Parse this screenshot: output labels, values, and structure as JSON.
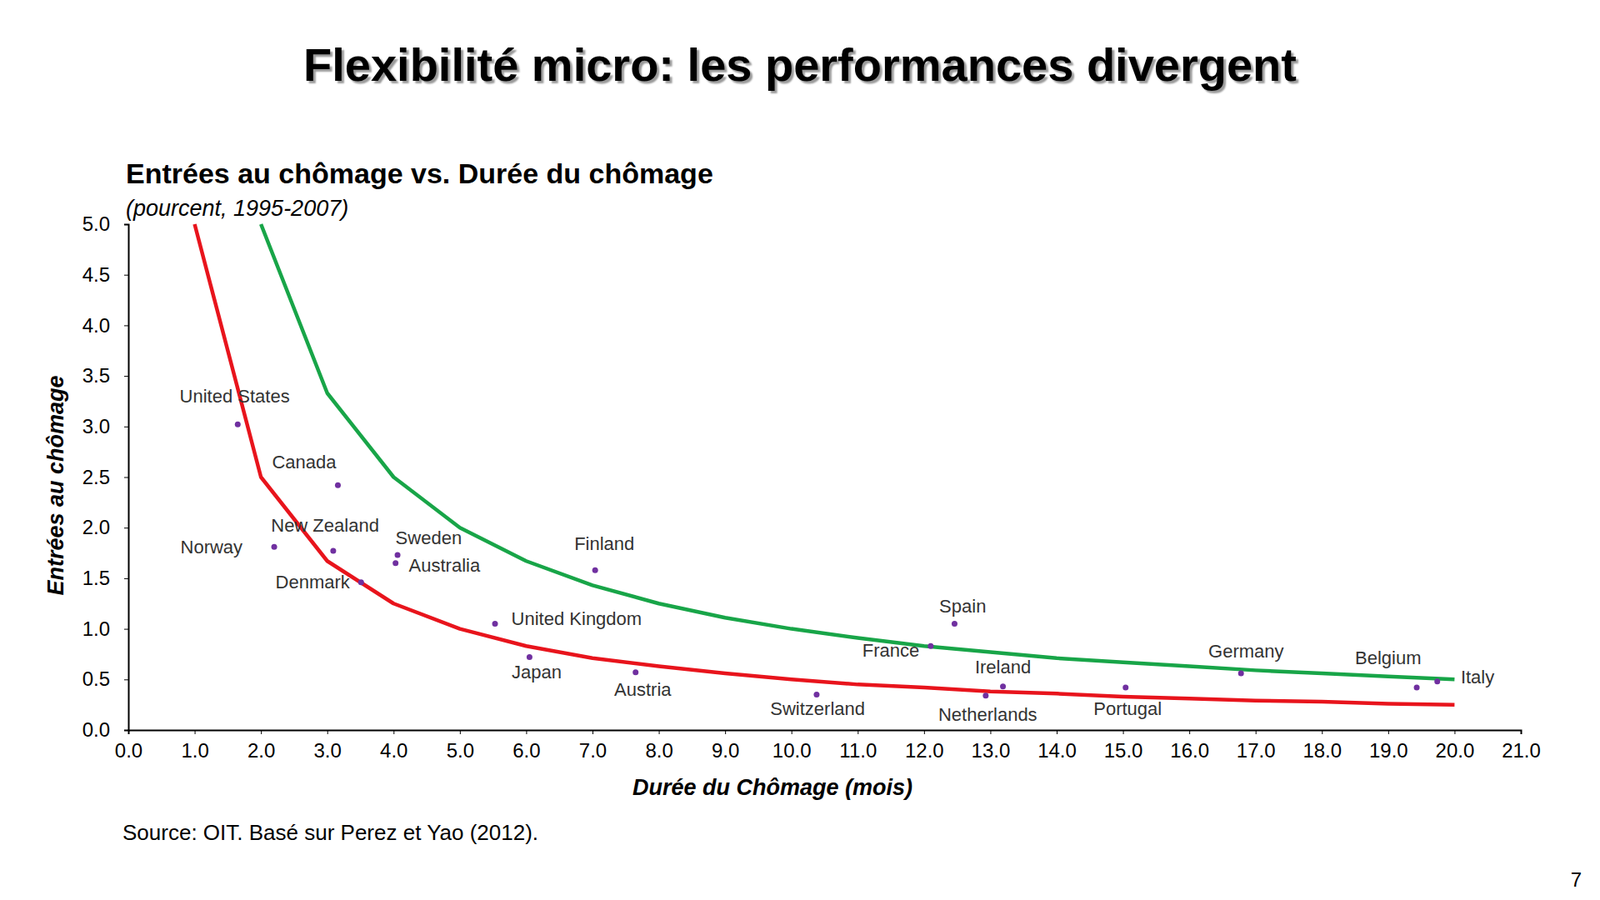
{
  "slide": {
    "title": "Flexibilité micro: les performances divergent",
    "page_number": "7",
    "source": "Source: OIT. Basé sur Perez et Yao (2012)."
  },
  "chart_data": {
    "type": "scatter",
    "title": "Entrées au chômage vs. Durée du chômage",
    "subtitle": "(pourcent, 1995-2007)",
    "x_label": "Durée du Chômage (mois)",
    "y_label": "Entrées au chômage",
    "xlim": [
      0,
      21
    ],
    "ylim": [
      0,
      5
    ],
    "xticks": [
      {
        "value": 0,
        "label": "0.0"
      },
      {
        "value": 1,
        "label": "1.0"
      },
      {
        "value": 2,
        "label": "2.0"
      },
      {
        "value": 3,
        "label": "3.0"
      },
      {
        "value": 4,
        "label": "4.0"
      },
      {
        "value": 5,
        "label": "5.0"
      },
      {
        "value": 6,
        "label": "6.0"
      },
      {
        "value": 7,
        "label": "7.0"
      },
      {
        "value": 8,
        "label": "8.0"
      },
      {
        "value": 9,
        "label": "9.0"
      },
      {
        "value": 10,
        "label": "10.0"
      },
      {
        "value": 11,
        "label": "11.0"
      },
      {
        "value": 12,
        "label": "12.0"
      },
      {
        "value": 13,
        "label": "13.0"
      },
      {
        "value": 14,
        "label": "14.0"
      },
      {
        "value": 15,
        "label": "15.0"
      },
      {
        "value": 16,
        "label": "16.0"
      },
      {
        "value": 17,
        "label": "17.0"
      },
      {
        "value": 18,
        "label": "18.0"
      },
      {
        "value": 19,
        "label": "19.0"
      },
      {
        "value": 20,
        "label": "20.0"
      },
      {
        "value": 21,
        "label": "21.0"
      }
    ],
    "yticks": [
      {
        "value": 0,
        "label": "0.0"
      },
      0.5,
      {
        "value": 1,
        "label": "1.0"
      },
      1.5,
      {
        "value": 2,
        "label": "2.0"
      },
      2.5,
      {
        "value": 3,
        "label": "3.0"
      },
      3.5,
      {
        "value": 4,
        "label": "4.0"
      },
      4.5,
      {
        "value": 5,
        "label": "5.0"
      }
    ],
    "grid": false,
    "series": [
      {
        "type": "line",
        "color": "#e8141c",
        "line_style": "solid",
        "x": [
          1,
          2,
          3,
          4,
          5,
          6,
          7,
          8,
          9,
          10,
          11,
          12,
          13,
          14,
          15,
          16,
          17,
          18,
          19,
          20
        ],
        "values": [
          5,
          2.5,
          1.67,
          1.25,
          1,
          0.83,
          0.71,
          0.63,
          0.56,
          0.5,
          0.45,
          0.42,
          0.38,
          0.36,
          0.33,
          0.31,
          0.29,
          0.28,
          0.26,
          0.25
        ]
      },
      {
        "type": "line",
        "color": "#18a548",
        "line_style": "solid",
        "x": [
          2,
          3,
          4,
          5,
          6,
          7,
          8,
          9,
          10,
          11,
          12,
          13,
          14,
          15,
          16,
          17,
          18,
          19,
          20
        ],
        "values": [
          5,
          3.33,
          2.5,
          2,
          1.67,
          1.43,
          1.25,
          1.11,
          1,
          0.91,
          0.83,
          0.77,
          0.71,
          0.67,
          0.63,
          0.59,
          0.56,
          0.53,
          0.5
        ]
      },
      {
        "type": "scatter",
        "color": "#7030a0",
        "marker": "circle",
        "labels": [
          "United States",
          "Canada",
          "Norway",
          "New Zealand",
          "Sweden",
          "Australia",
          "Denmark",
          "Finland",
          "United Kingdom",
          "Japan",
          "Austria",
          "Switzerland",
          "France",
          "Spain",
          "Ireland",
          "Netherlands",
          "Portugal",
          "Germany",
          "Belgium",
          "Italy"
        ],
        "x": [
          1.65,
          3.16,
          2.2,
          3.09,
          4.06,
          4.03,
          3.51,
          7.04,
          5.53,
          6.05,
          7.65,
          10.38,
          12.1,
          12.46,
          13.19,
          12.93,
          15.04,
          16.78,
          19.43,
          19.74
        ],
        "values": [
          3.02,
          2.42,
          1.81,
          1.77,
          1.73,
          1.65,
          1.46,
          1.58,
          1.05,
          0.72,
          0.57,
          0.35,
          0.83,
          1.05,
          0.43,
          0.34,
          0.42,
          0.56,
          0.42,
          0.48
        ]
      }
    ]
  }
}
